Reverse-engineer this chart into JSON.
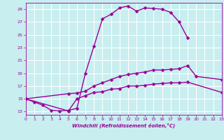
{
  "bg_color": "#c8eef0",
  "grid_color": "#ffffff",
  "line_color": "#990099",
  "xlabel": "Windchill (Refroidissement éolien,°C)",
  "xlim": [
    0,
    23
  ],
  "ylim": [
    12.5,
    30
  ],
  "yticks": [
    13,
    15,
    17,
    19,
    21,
    23,
    25,
    27,
    29
  ],
  "xticks": [
    0,
    1,
    2,
    3,
    4,
    5,
    6,
    7,
    8,
    9,
    10,
    11,
    12,
    13,
    14,
    15,
    16,
    17,
    18,
    19,
    20,
    21,
    22,
    23
  ],
  "line1_x": [
    0,
    1,
    2,
    3,
    4,
    5,
    6,
    7,
    8,
    9,
    10,
    11,
    12,
    13,
    14,
    15,
    16,
    17,
    18,
    19
  ],
  "line1_y": [
    15,
    14.5,
    14,
    13.2,
    13.1,
    13.2,
    13.5,
    19,
    23.2,
    27.5,
    28.2,
    29.2,
    29.5,
    28.7,
    29.2,
    29.1,
    29.0,
    28.5,
    27.0,
    24.5
  ],
  "line2_x": [
    0,
    5,
    6,
    7,
    8,
    9,
    10,
    11,
    12,
    13,
    14,
    15,
    16,
    17,
    18,
    19,
    20,
    23
  ],
  "line2_y": [
    15,
    15.8,
    15.9,
    16.2,
    17.0,
    17.5,
    18.0,
    18.5,
    18.8,
    19.0,
    19.2,
    19.5,
    19.5,
    19.6,
    19.7,
    20.2,
    18.5,
    18.0
  ],
  "line3_x": [
    0,
    5,
    6,
    7,
    8,
    9,
    10,
    11,
    12,
    13,
    14,
    15,
    16,
    17,
    18,
    19,
    23
  ],
  "line3_y": [
    15,
    13.1,
    15.0,
    15.5,
    16.0,
    16.1,
    16.5,
    16.6,
    17.0,
    17.0,
    17.1,
    17.3,
    17.4,
    17.5,
    17.5,
    17.6,
    16.0
  ]
}
